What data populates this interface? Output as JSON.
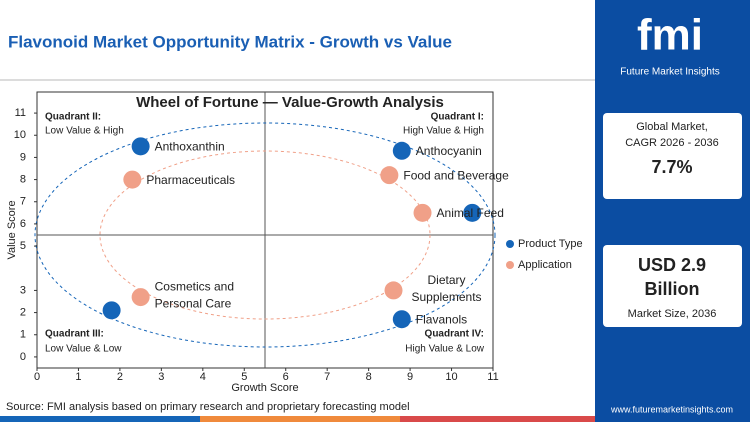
{
  "header": {
    "title": "Flavonoid Market Opportunity Matrix - Growth vs Value"
  },
  "chart_data": {
    "type": "scatter",
    "title": "Wheel of Fortune — Value-Growth Analysis",
    "x_label": "Growth Score",
    "y_label": "Value Score",
    "xlim": [
      0,
      11
    ],
    "ylim": [
      -0.5,
      11.5
    ],
    "xticks": [
      0,
      1,
      2,
      3,
      4,
      5,
      6,
      7,
      8,
      9,
      10,
      11
    ],
    "yticks": [
      0,
      1,
      2,
      3,
      5,
      6,
      7,
      8,
      9,
      10,
      11
    ],
    "legend": "right",
    "series": [
      {
        "name": "Product Type",
        "color": "#1565b8",
        "x": [
          2.5,
          8.8,
          10.5,
          8.8,
          1.8
        ],
        "values": [
          9.5,
          9.3,
          6.5,
          1.7,
          2.1
        ],
        "labels": [
          [
            "Anthoxanthin"
          ],
          [
            "Anthocyanin"
          ],
          null,
          [
            "Flavanols"
          ],
          null
        ]
      },
      {
        "name": "Application",
        "color": "#f0a088",
        "x": [
          2.3,
          8.5,
          9.3,
          2.5,
          8.6
        ],
        "values": [
          8.0,
          8.2,
          6.5,
          2.7,
          3.0
        ],
        "labels": [
          [
            "Pharmaceuticals"
          ],
          [
            "Food and Beverage"
          ],
          [
            "Animal Feed"
          ],
          [
            "Cosmetics and",
            "Personal Care"
          ],
          [
            "Dietary",
            "Supplements"
          ]
        ]
      }
    ],
    "quadrants": [
      {
        "title": "Quadrant II:",
        "subtitle": "Low Value & High"
      },
      {
        "title": "Quadrant I:",
        "subtitle": "High Value & High"
      },
      {
        "title": "Quadrant III:",
        "subtitle": "Low Value & Low"
      },
      {
        "title": "Quadrant IV:",
        "subtitle": "High Value & Low"
      }
    ]
  },
  "sidebar": {
    "brand": "fmi",
    "brand_name": "Future Market Insights",
    "cagr_label": [
      "Global Market,",
      "CAGR 2026 - 2036"
    ],
    "cagr_value": "7.7%",
    "size_value": [
      "USD 2.9",
      "Billion"
    ],
    "size_label": "Market Size, 2036",
    "website": "www.futuremarketinsights.com"
  },
  "source": "Source: FMI analysis based on primary research and proprietary forecasting model"
}
